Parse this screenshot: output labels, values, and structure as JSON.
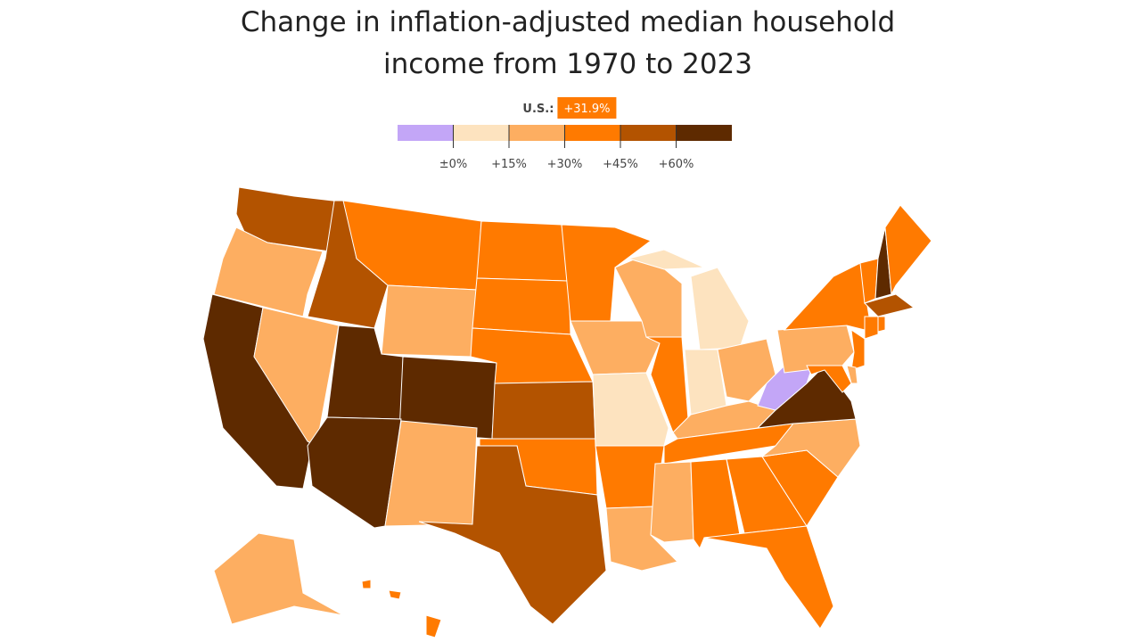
{
  "title_lines": [
    "Change in inflation-adjusted median household",
    "income from 1970 to 2023"
  ],
  "legend": {
    "us_label": "U.S.:",
    "us_value": 31.9,
    "us_value_label": "+31.9%",
    "colors": [
      "#c3a6f7",
      "#fde3bf",
      "#fdae61",
      "#ff7a00",
      "#b35300",
      "#5e2a00"
    ],
    "lim": [
      -15,
      75
    ],
    "ticks": [
      {
        "value": 0,
        "label": "±0%"
      },
      {
        "value": 15,
        "label": "+15%"
      },
      {
        "value": 30,
        "label": "+30%"
      },
      {
        "value": 45,
        "label": "+45%"
      },
      {
        "value": 60,
        "label": "+60%"
      }
    ]
  },
  "map": {
    "state_bins": [
      4,
      2,
      5,
      2,
      4,
      3,
      2,
      5,
      5,
      5,
      2,
      3,
      3,
      3,
      4,
      3,
      4,
      3,
      2,
      1,
      3,
      2,
      2,
      3,
      1,
      1,
      2,
      2,
      3,
      2,
      3,
      3,
      3,
      3,
      2,
      5,
      0,
      2,
      3,
      3,
      5,
      3,
      4,
      3,
      3,
      3,
      2,
      3,
      2,
      3
    ]
  }
}
